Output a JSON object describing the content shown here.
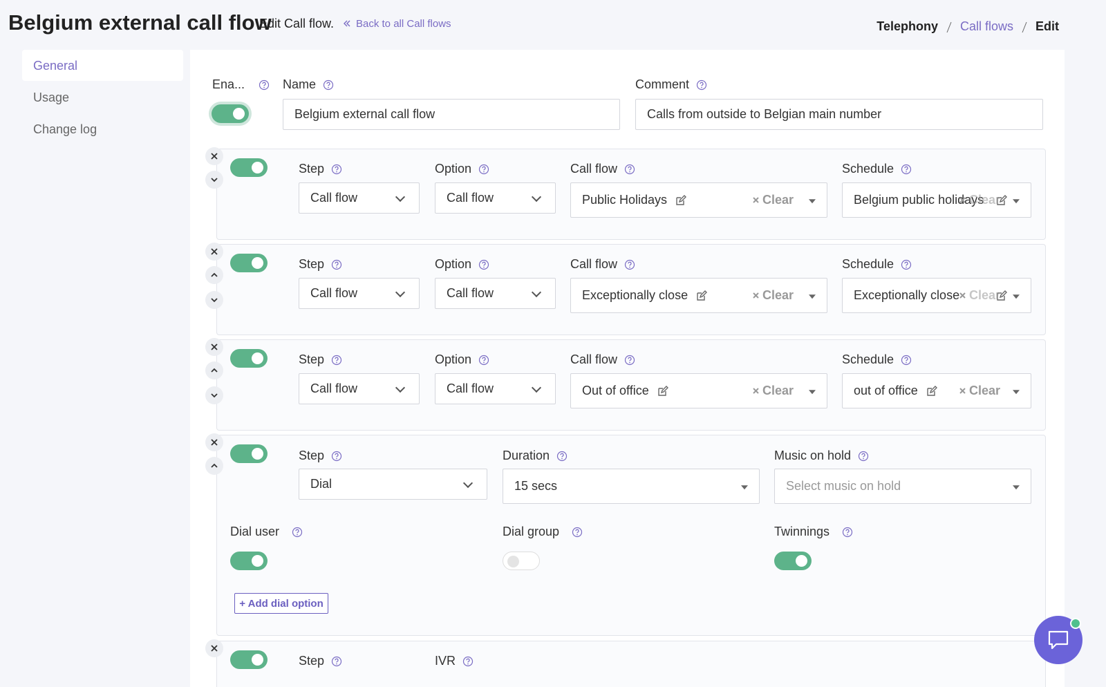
{
  "header": {
    "title": "Belgium external call flow",
    "subtitle": "Edit Call flow.",
    "back_link": "Back to all Call flows"
  },
  "breadcrumb": [
    "Telephony",
    "Call flows",
    "Edit"
  ],
  "sidebar": [
    "General",
    "Usage",
    "Change log"
  ],
  "general": {
    "enabled": {
      "label": "Ena...",
      "on": true
    },
    "name": {
      "label": "Name",
      "value": "Belgium external call flow"
    },
    "comment": {
      "label": "Comment",
      "value": "Calls from outside to Belgian main number"
    }
  },
  "steps": [
    {
      "step": {
        "label": "Step",
        "value": "Call flow"
      },
      "option": {
        "label": "Option",
        "value": "Call flow"
      },
      "call_flow": {
        "label": "Call flow",
        "value": "Public Holidays",
        "clear": "Clear"
      },
      "schedule": {
        "label": "Schedule",
        "value": "Belgium public holidays",
        "clear": "Clear"
      }
    },
    {
      "step": {
        "label": "Step",
        "value": "Call flow"
      },
      "option": {
        "label": "Option",
        "value": "Call flow"
      },
      "call_flow": {
        "label": "Call flow",
        "value": "Exceptionally close",
        "clear": "Clear"
      },
      "schedule": {
        "label": "Schedule",
        "value": "Exceptionally close",
        "clear": "Clear"
      }
    },
    {
      "step": {
        "label": "Step",
        "value": "Call flow"
      },
      "option": {
        "label": "Option",
        "value": "Call flow"
      },
      "call_flow": {
        "label": "Call flow",
        "value": "Out of office",
        "clear": "Clear"
      },
      "schedule": {
        "label": "Schedule",
        "value": "out of office",
        "clear": "Clear"
      }
    }
  ],
  "dial_step": {
    "step": {
      "label": "Step",
      "value": "Dial"
    },
    "duration": {
      "label": "Duration",
      "value": "15 secs"
    },
    "music_on_hold": {
      "label": "Music on hold",
      "placeholder": "Select music on hold"
    },
    "dial_user": {
      "label": "Dial user",
      "on": true
    },
    "dial_group": {
      "label": "Dial group",
      "on": false
    },
    "twinnings": {
      "label": "Twinnings",
      "on": true
    },
    "add_button": "+ Add dial option"
  },
  "ivr_step": {
    "step": {
      "label": "Step"
    },
    "ivr": {
      "label": "IVR"
    }
  }
}
